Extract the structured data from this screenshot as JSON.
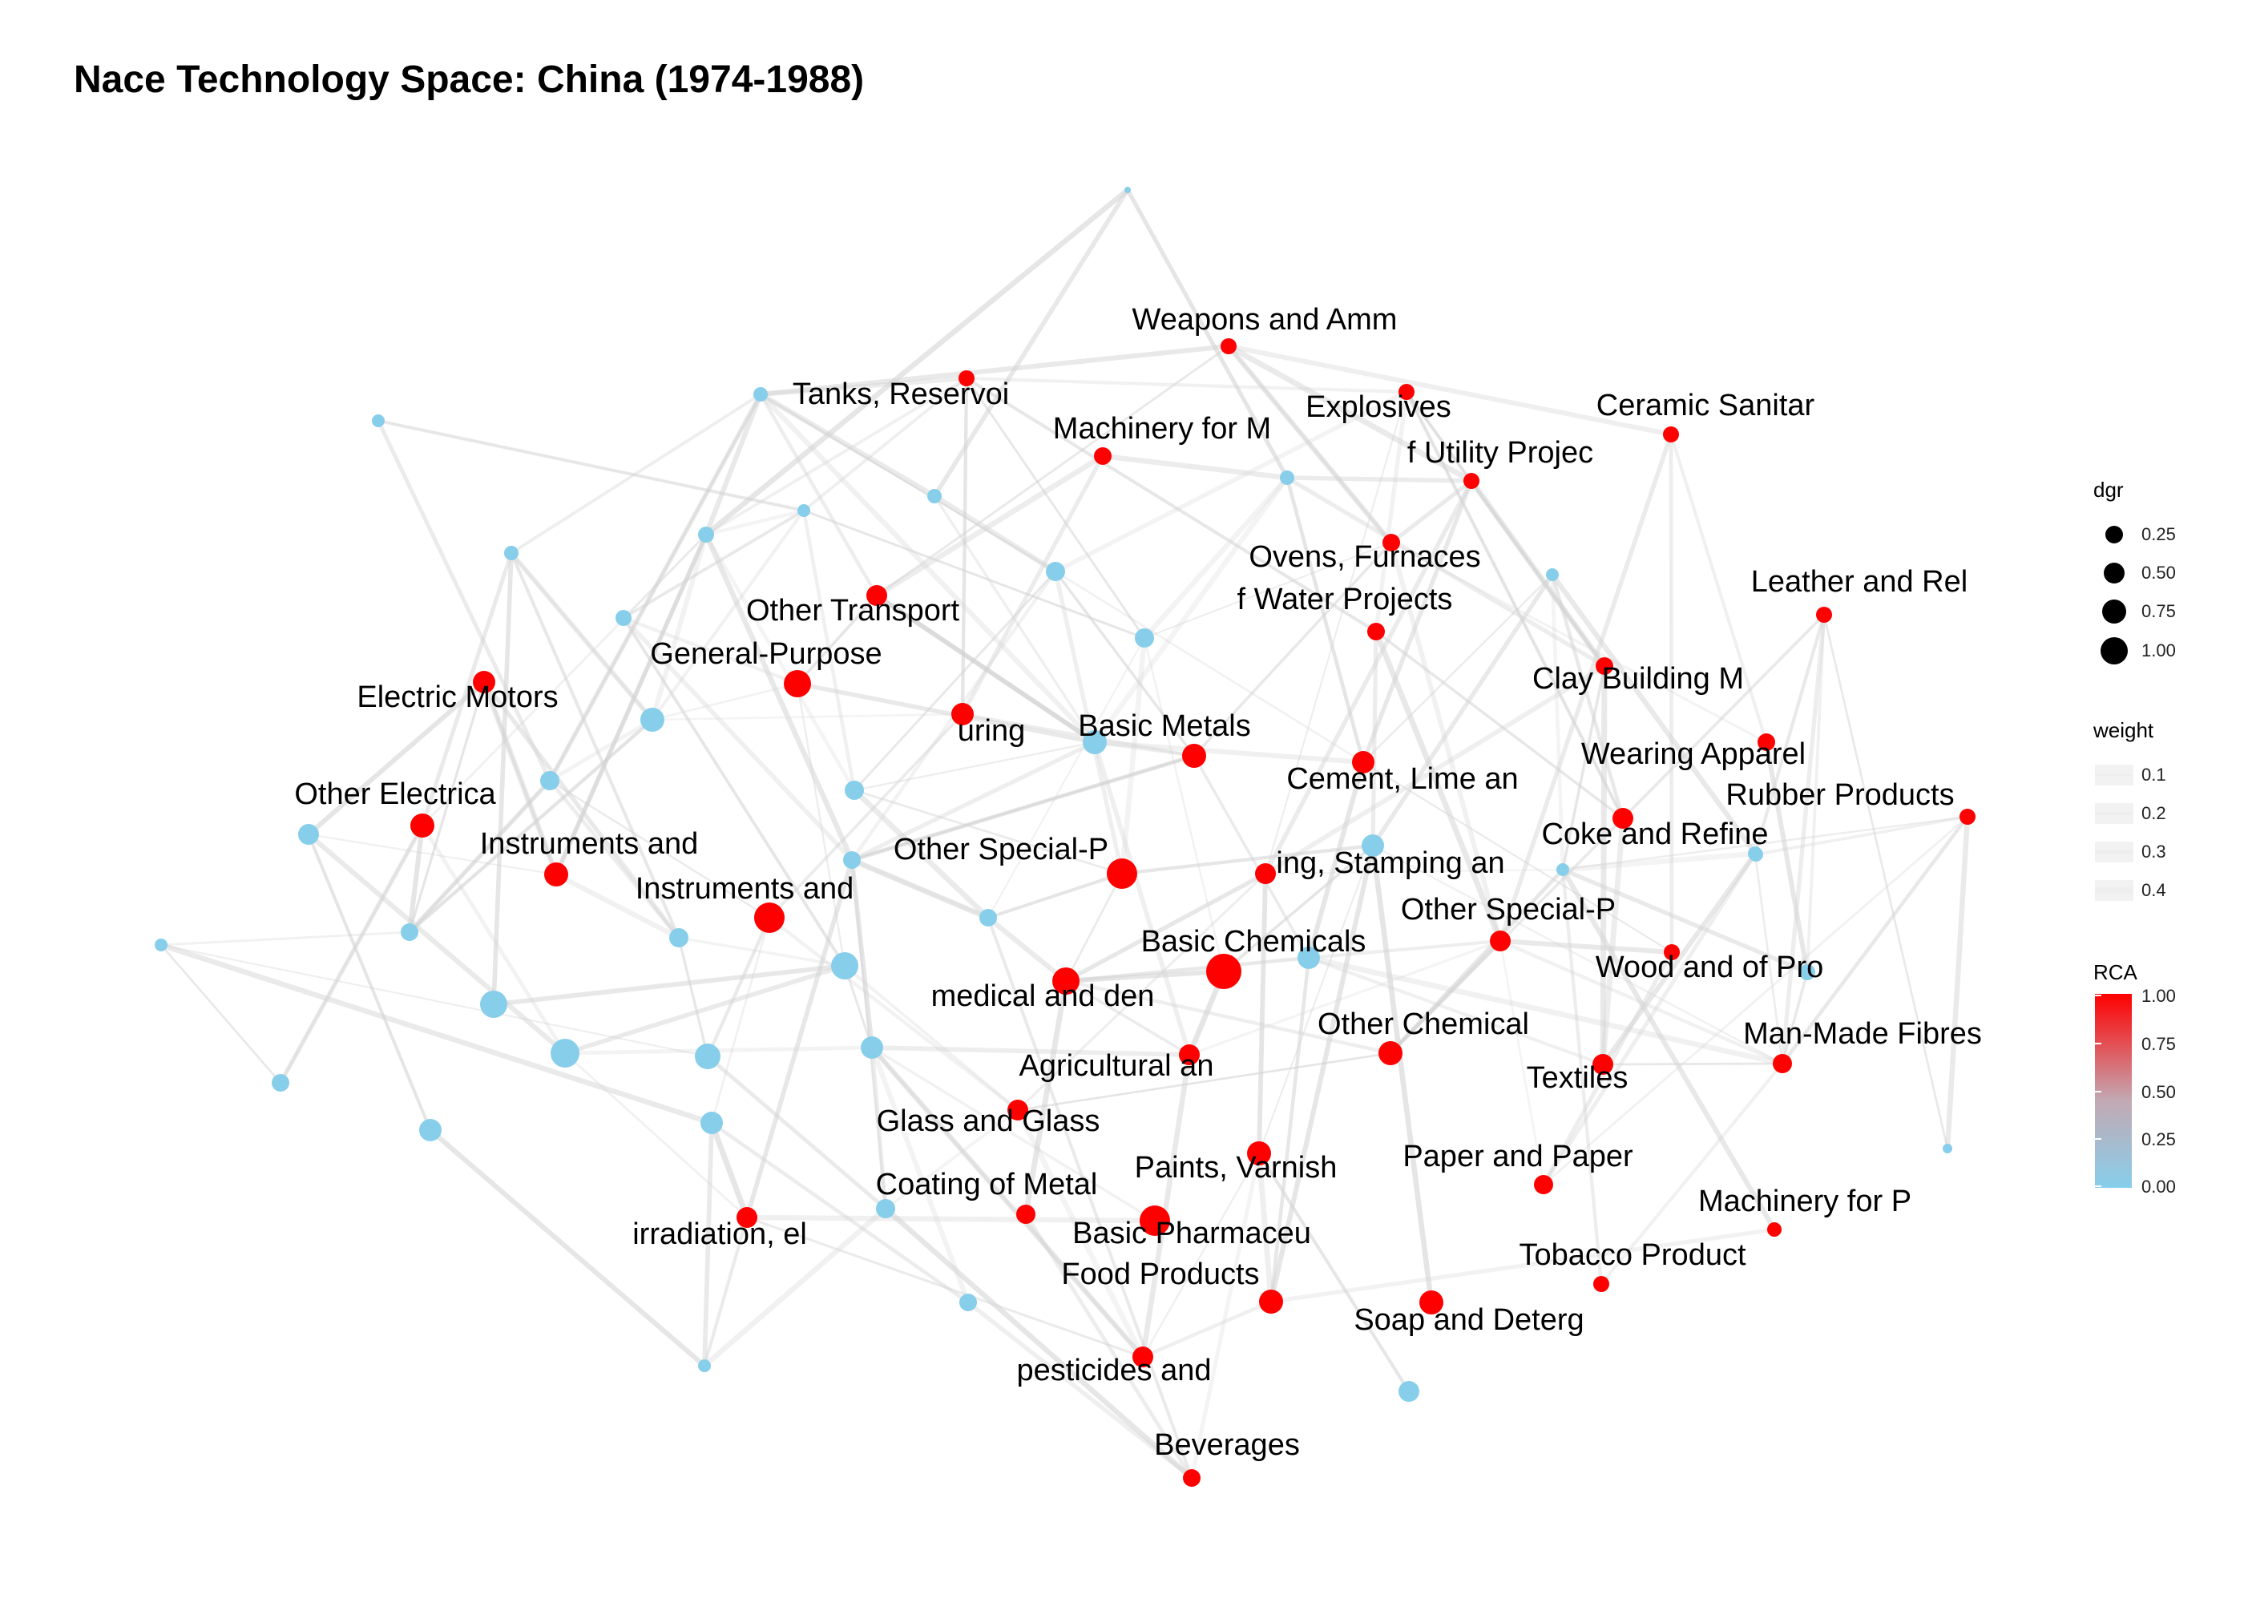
{
  "title": "Nace Technology Space: China (1974-1988)",
  "colors": {
    "high_rca": "#ff0000",
    "low_rca": "#87ceeb",
    "edge": "#d3d3d3"
  },
  "labeled_nodes": [
    {
      "label": "Weapons and Amm",
      "rca": 1
    },
    {
      "label": "Tanks, Reservoi",
      "rca": 1
    },
    {
      "label": "Explosives",
      "rca": 1
    },
    {
      "label": "Ceramic Sanitar",
      "rca": 1
    },
    {
      "label": "Machinery for M",
      "rca": 1
    },
    {
      "label": "f Utility Projec",
      "rca": 1
    },
    {
      "label": "Ovens, Furnaces",
      "rca": 1
    },
    {
      "label": "f Water Projects",
      "rca": 1
    },
    {
      "label": "Leather and Rel",
      "rca": 1
    },
    {
      "label": "Other Transport",
      "rca": 1
    },
    {
      "label": "General-Purpose",
      "rca": 1
    },
    {
      "label": "Electric Motors",
      "rca": 1
    },
    {
      "label": "uring",
      "rca": 1
    },
    {
      "label": "Basic Metals",
      "rca": 1
    },
    {
      "label": "Clay Building M",
      "rca": 1
    },
    {
      "label": "Cement, Lime an",
      "rca": 1
    },
    {
      "label": "Wearing Apparel",
      "rca": 1
    },
    {
      "label": "Rubber Products",
      "rca": 1
    },
    {
      "label": "Other Electrica",
      "rca": 1
    },
    {
      "label": "Coke and Refine",
      "rca": 1
    },
    {
      "label": "Instruments and",
      "rca": 1
    },
    {
      "label": "Other Special-P",
      "rca": 1
    },
    {
      "label": "ing, Stamping an",
      "rca": 1
    },
    {
      "label": "Instruments and",
      "rca": 1
    },
    {
      "label": "Other Special-P",
      "rca": 1
    },
    {
      "label": "Basic Chemicals",
      "rca": 1
    },
    {
      "label": "Wood and of Pro",
      "rca": 1
    },
    {
      "label": "medical and den",
      "rca": 1
    },
    {
      "label": "Other Chemical",
      "rca": 1
    },
    {
      "label": "Man-Made Fibres",
      "rca": 1
    },
    {
      "label": "Agricultural an",
      "rca": 1
    },
    {
      "label": "Textiles",
      "rca": 1
    },
    {
      "label": "Glass and Glass",
      "rca": 1
    },
    {
      "label": "Paints, Varnish",
      "rca": 1
    },
    {
      "label": "Paper and Paper",
      "rca": 1
    },
    {
      "label": "Coating of Metal",
      "rca": 1
    },
    {
      "label": "Machinery for P",
      "rca": 1
    },
    {
      "label": "irradiation, el",
      "rca": 1
    },
    {
      "label": "Basic Pharmaceu",
      "rca": 1
    },
    {
      "label": "Tobacco Product",
      "rca": 1
    },
    {
      "label": "Food Products",
      "rca": 1
    },
    {
      "label": "Soap and Deterg",
      "rca": 1
    },
    {
      "label": "pesticides and",
      "rca": 1
    },
    {
      "label": "Beverages",
      "rca": 1
    }
  ],
  "legend": {
    "size": {
      "title": "dgr",
      "items": [
        "0.25",
        "0.50",
        "0.75",
        "1.00"
      ]
    },
    "weight": {
      "title": "weight",
      "items": [
        "0.1",
        "0.2",
        "0.3",
        "0.4"
      ]
    },
    "color": {
      "title": "RCA",
      "ticks": [
        "1.00",
        "0.75",
        "0.50",
        "0.25",
        "0.00"
      ]
    }
  }
}
